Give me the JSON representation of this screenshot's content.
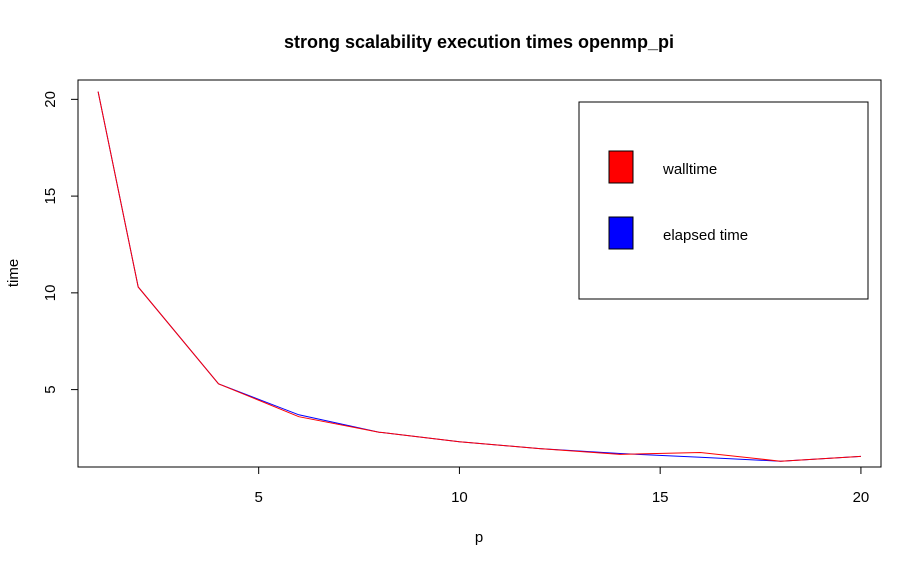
{
  "chart_data": {
    "type": "line",
    "title": "strong scalability execution times openmp_pi",
    "xlabel": "p",
    "ylabel": "time",
    "xlim": [
      0.5,
      20.5
    ],
    "ylim": [
      1.0,
      21.0
    ],
    "xticks": [
      5,
      10,
      15,
      20
    ],
    "yticks": [
      5,
      10,
      15,
      20
    ],
    "grid": false,
    "legend_position": "top-right",
    "series": [
      {
        "name": "elapsed time",
        "color": "#0000ff",
        "x": [
          1,
          2,
          4,
          6,
          8,
          10,
          12,
          14,
          16,
          18,
          20
        ],
        "y": [
          20.4,
          10.3,
          5.3,
          3.7,
          2.8,
          2.3,
          1.95,
          1.7,
          1.5,
          1.3,
          1.55
        ]
      },
      {
        "name": "walltime",
        "color": "#ff0000",
        "x": [
          1,
          2,
          4,
          6,
          8,
          10,
          12,
          14,
          16,
          18,
          20
        ],
        "y": [
          20.4,
          10.3,
          5.3,
          3.6,
          2.8,
          2.3,
          1.95,
          1.65,
          1.75,
          1.3,
          1.55
        ]
      }
    ],
    "legend": [
      {
        "label": "walltime",
        "color": "#ff0000"
      },
      {
        "label": "elapsed time",
        "color": "#0000ff"
      }
    ]
  }
}
